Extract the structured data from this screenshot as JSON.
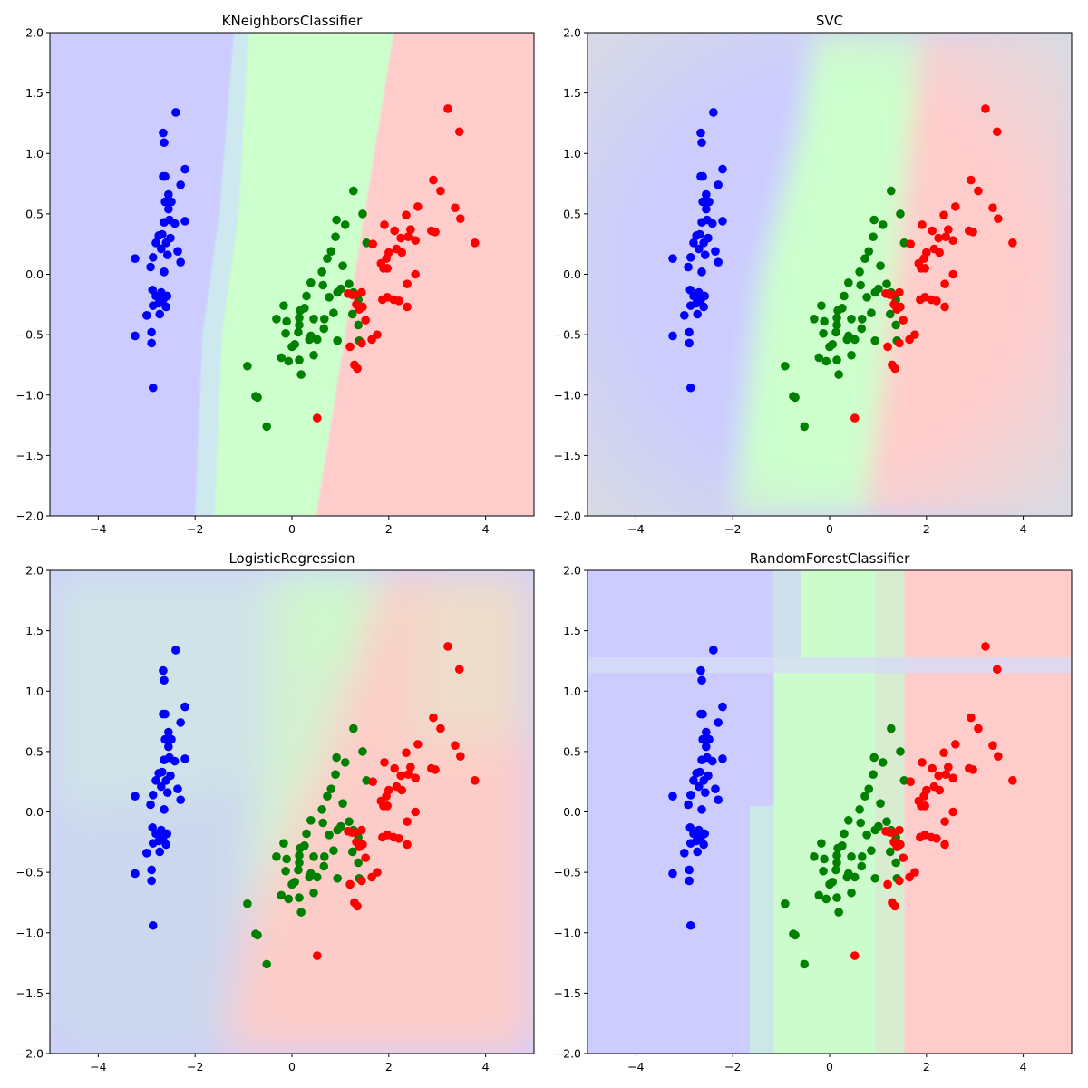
{
  "chart_data": [
    {
      "type": "scatter",
      "title": "KNeighborsClassifier",
      "xlim": [
        -5,
        5
      ],
      "ylim": [
        -2,
        2
      ],
      "xticks": [
        -4,
        -2,
        0,
        2,
        4
      ],
      "yticks": [
        -2.0,
        -1.5,
        -1.0,
        -0.5,
        0.0,
        0.5,
        1.0,
        1.5,
        2.0
      ],
      "regions": [
        {
          "class": "blue",
          "color": "#ccccff",
          "polygon": [
            [
              -5,
              -2
            ],
            [
              -2.0,
              -2
            ],
            [
              -1.85,
              -0.5
            ],
            [
              -1.5,
              0.5
            ],
            [
              -1.2,
              2
            ],
            [
              -5,
              2
            ]
          ]
        },
        {
          "class": "mix",
          "color": "#cde8ee",
          "polygon": [
            [
              -2.0,
              -2
            ],
            [
              -1.6,
              -2
            ],
            [
              -1.45,
              -0.5
            ],
            [
              -1.1,
              0.5
            ],
            [
              -0.9,
              2
            ],
            [
              -1.2,
              2
            ],
            [
              -1.5,
              0.5
            ],
            [
              -1.85,
              -0.5
            ]
          ]
        },
        {
          "class": "green",
          "color": "#ccffcc",
          "polygon": [
            [
              -1.6,
              -2
            ],
            [
              0.5,
              -2
            ],
            [
              2.1,
              2
            ],
            [
              -0.9,
              2
            ],
            [
              -1.1,
              0.5
            ],
            [
              -1.45,
              -0.5
            ]
          ]
        },
        {
          "class": "red",
          "color": "#ffcccc",
          "polygon": [
            [
              0.5,
              -2
            ],
            [
              5,
              -2
            ],
            [
              5,
              2
            ],
            [
              2.1,
              2
            ]
          ]
        }
      ],
      "blur": 1
    },
    {
      "type": "scatter",
      "title": "SVC",
      "xlim": [
        -5,
        5
      ],
      "ylim": [
        -2,
        2
      ],
      "xticks": [
        -4,
        -2,
        0,
        2,
        4
      ],
      "yticks": [
        -2.0,
        -1.5,
        -1.0,
        -0.5,
        0.0,
        0.5,
        1.0,
        1.5,
        2.0
      ],
      "regions": [
        {
          "class": "blue",
          "color": "#ccccff",
          "polygon": [
            [
              -5,
              -2
            ],
            [
              -2.0,
              -2
            ],
            [
              -1.4,
              0
            ],
            [
              -0.6,
              1.2
            ],
            [
              -0.3,
              2
            ],
            [
              -5,
              2
            ]
          ]
        },
        {
          "class": "green",
          "color": "#ccffcc",
          "polygon": [
            [
              -2.0,
              -2
            ],
            [
              0.73,
              -2
            ],
            [
              1.37,
              0
            ],
            [
              1.9,
              2
            ],
            [
              -0.3,
              2
            ],
            [
              -0.6,
              1.2
            ],
            [
              -1.4,
              0
            ]
          ]
        },
        {
          "class": "red",
          "color": "#ffcccc",
          "polygon": [
            [
              0.73,
              -2
            ],
            [
              5,
              -2
            ],
            [
              5,
              2
            ],
            [
              1.9,
              2
            ],
            [
              1.37,
              0
            ]
          ]
        }
      ],
      "blur": 14,
      "vignette": "#d8dce2"
    },
    {
      "type": "scatter",
      "title": "LogisticRegression",
      "xlim": [
        -5,
        5
      ],
      "ylim": [
        -2,
        2
      ],
      "xticks": [
        -4,
        -2,
        0,
        2,
        4
      ],
      "yticks": [
        -2.0,
        -1.5,
        -1.0,
        -0.5,
        0.0,
        0.5,
        1.0,
        1.5,
        2.0
      ],
      "regions": [
        {
          "class": "blue",
          "color": "#ccd8ee",
          "polygon": [
            [
              -5,
              -2
            ],
            [
              -1.4,
              -2
            ],
            [
              -0.4,
              2
            ],
            [
              -5,
              2
            ]
          ]
        },
        {
          "class": "green",
          "color": "#d4f2d0",
          "polygon": [
            [
              -1.0,
              -1.0
            ],
            [
              -0.4,
              2
            ],
            [
              2.0,
              2
            ],
            [
              0.6,
              0.4
            ]
          ]
        },
        {
          "class": "red",
          "color": "#fccdc8",
          "polygon": [
            [
              -1.4,
              -2
            ],
            [
              5,
              -2
            ],
            [
              5,
              2
            ],
            [
              2.0,
              2
            ],
            [
              0.6,
              0.4
            ],
            [
              -1.0,
              -1.0
            ]
          ]
        }
      ],
      "blur": 22,
      "overlays": [
        {
          "color": "#cfe6e6",
          "polygon": [
            [
              -5,
              0
            ],
            [
              -1.0,
              0.2
            ],
            [
              -0.4,
              2
            ],
            [
              -5,
              2
            ]
          ]
        },
        {
          "color": "#cbfacb",
          "polygon": [
            [
              0.2,
              1.2
            ],
            [
              1.2,
              1.2
            ],
            [
              1.4,
              2
            ],
            [
              0.1,
              2
            ]
          ]
        },
        {
          "color": "#e8e0cc",
          "polygon": [
            [
              2.4,
              0.6
            ],
            [
              5,
              0.6
            ],
            [
              5,
              2
            ],
            [
              2.6,
              2
            ]
          ]
        }
      ]
    },
    {
      "type": "scatter",
      "title": "RandomForestClassifier",
      "xlim": [
        -5,
        5
      ],
      "ylim": [
        -2,
        2
      ],
      "xticks": [
        -4,
        -2,
        0,
        2,
        4
      ],
      "yticks": [
        -2.0,
        -1.5,
        -1.0,
        -0.5,
        0.0,
        0.5,
        1.0,
        1.5,
        2.0
      ],
      "regions": [
        {
          "class": "blue",
          "color": "#ccccff",
          "polygon": [
            [
              -5,
              -2
            ],
            [
              -1.65,
              -2
            ],
            [
              -1.65,
              2
            ],
            [
              -5,
              2
            ]
          ]
        },
        {
          "class": "blue",
          "color": "#ccccff",
          "polygon": [
            [
              -1.65,
              0.05
            ],
            [
              -1.15,
              0.05
            ],
            [
              -1.15,
              2
            ],
            [
              -1.65,
              2
            ]
          ]
        },
        {
          "class": "mix",
          "color": "#cce8e6",
          "polygon": [
            [
              -1.65,
              -2
            ],
            [
              -1.15,
              -2
            ],
            [
              -1.15,
              0.05
            ],
            [
              -1.65,
              0.05
            ]
          ]
        },
        {
          "class": "green",
          "color": "#ccfccc",
          "polygon": [
            [
              -1.15,
              -2
            ],
            [
              0.95,
              -2
            ],
            [
              0.95,
              2
            ],
            [
              -1.15,
              2
            ]
          ]
        },
        {
          "class": "mix",
          "color": "#d8ecd0",
          "polygon": [
            [
              0.95,
              -2
            ],
            [
              1.55,
              -2
            ],
            [
              1.55,
              2
            ],
            [
              0.95,
              2
            ]
          ]
        },
        {
          "class": "red",
          "color": "#ffcccc",
          "polygon": [
            [
              1.55,
              -2
            ],
            [
              5,
              -2
            ],
            [
              5,
              2
            ],
            [
              1.55,
              2
            ]
          ]
        }
      ],
      "blur": 0,
      "overlays": [
        {
          "color": "#d6dcf6",
          "polygon": [
            [
              -5,
              1.15
            ],
            [
              5,
              1.15
            ],
            [
              5,
              1.28
            ],
            [
              -5,
              1.28
            ]
          ]
        },
        {
          "color": "#d0d8f4",
          "polygon": [
            [
              -1.2,
              1.28
            ],
            [
              -0.6,
              1.28
            ],
            [
              -0.6,
              2
            ],
            [
              -1.2,
              2
            ]
          ]
        }
      ]
    }
  ],
  "class_colors": {
    "blue": "#0000ff",
    "green": "#008000",
    "red": "#ff0000"
  },
  "points": {
    "blue": [
      [
        -2.4,
        1.34
      ],
      [
        -2.66,
        1.17
      ],
      [
        -2.64,
        1.09
      ],
      [
        -2.21,
        0.87
      ],
      [
        -2.66,
        0.81
      ],
      [
        -2.62,
        0.81
      ],
      [
        -2.3,
        0.74
      ],
      [
        -2.55,
        0.66
      ],
      [
        -2.49,
        0.6
      ],
      [
        -2.62,
        0.6
      ],
      [
        -2.55,
        0.54
      ],
      [
        -2.53,
        0.45
      ],
      [
        -2.64,
        0.43
      ],
      [
        -2.21,
        0.44
      ],
      [
        -2.42,
        0.42
      ],
      [
        -2.68,
        0.33
      ],
      [
        -2.75,
        0.32
      ],
      [
        -2.51,
        0.3
      ],
      [
        -2.6,
        0.26
      ],
      [
        -2.81,
        0.26
      ],
      [
        -2.7,
        0.21
      ],
      [
        -2.36,
        0.19
      ],
      [
        -2.57,
        0.16
      ],
      [
        -2.87,
        0.14
      ],
      [
        -3.24,
        0.13
      ],
      [
        -2.3,
        0.1
      ],
      [
        -2.92,
        0.06
      ],
      [
        -2.64,
        0.02
      ],
      [
        -2.88,
        -0.13
      ],
      [
        -2.7,
        -0.15
      ],
      [
        -2.81,
        -0.18
      ],
      [
        -2.58,
        -0.18
      ],
      [
        -2.66,
        -0.21
      ],
      [
        -2.75,
        -0.24
      ],
      [
        -2.87,
        -0.26
      ],
      [
        -2.6,
        -0.27
      ],
      [
        -2.73,
        -0.33
      ],
      [
        -3.0,
        -0.34
      ],
      [
        -2.9,
        -0.48
      ],
      [
        -3.24,
        -0.51
      ],
      [
        -2.9,
        -0.57
      ],
      [
        -2.87,
        -0.94
      ]
    ],
    "green": [
      [
        1.27,
        0.69
      ],
      [
        0.92,
        0.45
      ],
      [
        1.46,
        0.5
      ],
      [
        1.1,
        0.41
      ],
      [
        1.54,
        0.26
      ],
      [
        0.9,
        0.31
      ],
      [
        0.81,
        0.19
      ],
      [
        0.73,
        0.13
      ],
      [
        1.05,
        0.07
      ],
      [
        0.62,
        0.02
      ],
      [
        0.39,
        -0.07
      ],
      [
        0.64,
        -0.09
      ],
      [
        0.94,
        -0.15
      ],
      [
        0.77,
        -0.19
      ],
      [
        1.18,
        -0.08
      ],
      [
        1.27,
        -0.15
      ],
      [
        1.37,
        -0.21
      ],
      [
        1.01,
        -0.12
      ],
      [
        0.3,
        -0.18
      ],
      [
        0.17,
        -0.3
      ],
      [
        0.26,
        -0.28
      ],
      [
        0.15,
        -0.36
      ],
      [
        0.45,
        -0.37
      ],
      [
        0.67,
        -0.37
      ],
      [
        0.86,
        -0.32
      ],
      [
        0.66,
        -0.45
      ],
      [
        0.36,
        -0.54
      ],
      [
        0.52,
        -0.54
      ],
      [
        1.25,
        -0.33
      ],
      [
        -0.17,
        -0.26
      ],
      [
        -0.32,
        -0.37
      ],
      [
        -0.11,
        -0.39
      ],
      [
        0.15,
        -0.42
      ],
      [
        1.37,
        -0.42
      ],
      [
        0.94,
        -0.55
      ],
      [
        0.0,
        -0.6
      ],
      [
        -0.13,
        -0.49
      ],
      [
        0.13,
        -0.48
      ],
      [
        0.39,
        -0.51
      ],
      [
        0.06,
        -0.58
      ],
      [
        -0.22,
        -0.69
      ],
      [
        0.15,
        -0.71
      ],
      [
        -0.07,
        -0.72
      ],
      [
        0.45,
        -0.67
      ],
      [
        0.19,
        -0.83
      ],
      [
        -0.92,
        -0.76
      ],
      [
        -0.75,
        -1.01
      ],
      [
        -0.71,
        -1.02
      ],
      [
        -0.52,
        -1.26
      ],
      [
        1.39,
        -0.55
      ]
    ],
    "red": [
      [
        3.22,
        1.37
      ],
      [
        3.46,
        1.18
      ],
      [
        3.07,
        0.69
      ],
      [
        2.92,
        0.78
      ],
      [
        3.37,
        0.55
      ],
      [
        3.48,
        0.46
      ],
      [
        3.78,
        0.26
      ],
      [
        2.6,
        0.56
      ],
      [
        2.36,
        0.49
      ],
      [
        1.91,
        0.41
      ],
      [
        2.12,
        0.36
      ],
      [
        2.45,
        0.37
      ],
      [
        2.88,
        0.36
      ],
      [
        2.96,
        0.35
      ],
      [
        2.25,
        0.3
      ],
      [
        2.55,
        0.28
      ],
      [
        2.4,
        0.31
      ],
      [
        1.67,
        0.25
      ],
      [
        2.16,
        0.21
      ],
      [
        2.27,
        0.18
      ],
      [
        2.0,
        0.18
      ],
      [
        1.95,
        0.13
      ],
      [
        1.84,
        0.09
      ],
      [
        1.89,
        0.05
      ],
      [
        1.97,
        0.05
      ],
      [
        2.55,
        0.0
      ],
      [
        2.38,
        -0.08
      ],
      [
        1.16,
        -0.16
      ],
      [
        1.24,
        -0.17
      ],
      [
        1.44,
        -0.15
      ],
      [
        1.97,
        -0.19
      ],
      [
        2.1,
        -0.21
      ],
      [
        2.21,
        -0.22
      ],
      [
        2.38,
        -0.27
      ],
      [
        1.87,
        -0.21
      ],
      [
        1.46,
        -0.27
      ],
      [
        1.52,
        -0.38
      ],
      [
        1.65,
        -0.54
      ],
      [
        1.76,
        -0.5
      ],
      [
        1.44,
        -0.57
      ],
      [
        1.2,
        -0.6
      ],
      [
        1.29,
        -0.75
      ],
      [
        1.35,
        -0.78
      ],
      [
        0.52,
        -1.19
      ],
      [
        1.31,
        -0.17
      ],
      [
        1.39,
        -0.29
      ],
      [
        1.33,
        -0.25
      ]
    ]
  }
}
